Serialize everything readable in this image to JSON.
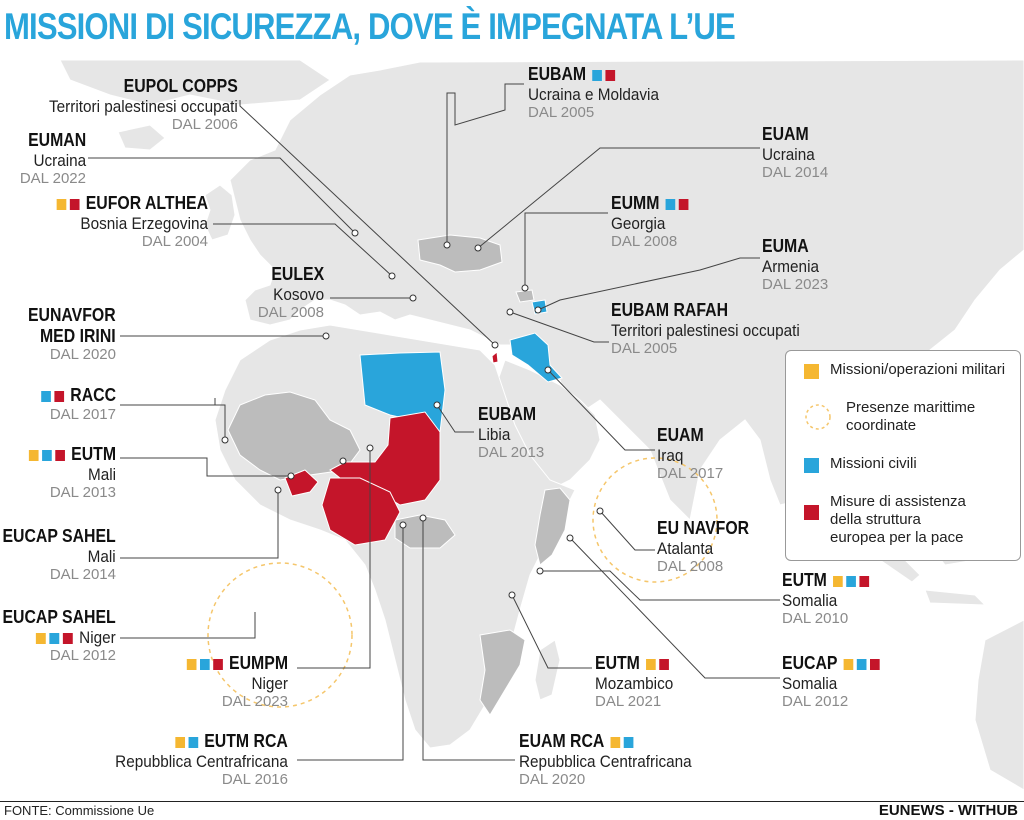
{
  "title": "MISSIONI DI SICUREZZA, DOVE È IMPEGNATA L’UE",
  "source": "FONTE: Commissione Ue",
  "brand": "EUNEWS - WITHUB",
  "colors": {
    "military": "#f5b731",
    "civil": "#29a5db",
    "peace": "#c4152a",
    "land": "#e6e6e6",
    "involved": "#bcbcbc",
    "sea": "#ffffff"
  },
  "legend": {
    "military": "Missioni/operazioni militari",
    "maritime_1": "Presenze marittime",
    "maritime_2": "coordinate",
    "civil": "Missioni civili",
    "peace_1": "Misure di assistenza",
    "peace_2": "della struttura",
    "peace_3": "europea per la pace"
  },
  "missions": {
    "eupol_copps": {
      "name": "EUPOL COPPS",
      "area": "Territori palestinesi occupati",
      "date": "DAL 2006"
    },
    "euman": {
      "name": "EUMAN",
      "area": "Ucraina",
      "date": "DAL 2022"
    },
    "eufor_althea": {
      "name": "EUFOR ALTHEA",
      "area": "Bosnia Erzegovina",
      "date": "DAL 2004"
    },
    "eulex": {
      "name": "EULEX",
      "area": "Kosovo",
      "date": "DAL 2008"
    },
    "eunavfor_irini": {
      "name_1": "EUNAVFOR",
      "name_2": "MED IRINI",
      "date": "DAL 2020"
    },
    "racc": {
      "name": "RACC",
      "date": "DAL 2017"
    },
    "eutm_mali": {
      "name": "EUTM",
      "area": "Mali",
      "date": "DAL 2013"
    },
    "eucap_sahel_mali": {
      "name": "EUCAP SAHEL",
      "area": "Mali",
      "date": "DAL 2014"
    },
    "eucap_sahel_niger": {
      "name": "EUCAP SAHEL",
      "area": "Niger",
      "date": "DAL 2012"
    },
    "eumpm": {
      "name": "EUMPM",
      "area": "Niger",
      "date": "DAL 2023"
    },
    "eutm_rca": {
      "name": "EUTM RCA",
      "area": "Repubblica Centrafricana",
      "date": "DAL 2016"
    },
    "euam_rca": {
      "name": "EUAM RCA",
      "area": "Repubblica Centrafricana",
      "date": "DAL 2020"
    },
    "eutm_moz": {
      "name": "EUTM",
      "area": "Mozambico",
      "date": "DAL 2021"
    },
    "eucap_som": {
      "name": "EUCAP",
      "area": "Somalia",
      "date": "DAL 2012"
    },
    "eutm_som": {
      "name": "EUTM",
      "area": "Somalia",
      "date": "DAL 2010"
    },
    "eunavfor_atalanta": {
      "name": "EU NAVFOR",
      "area": "Atalanta",
      "date": "DAL 2008"
    },
    "euam_iraq": {
      "name": "EUAM",
      "area": "Iraq",
      "date": "DAL 2017"
    },
    "eubam_libia": {
      "name": "EUBAM",
      "area": "Libia",
      "date": "DAL 2013"
    },
    "eubam_rafah": {
      "name": "EUBAM RAFAH",
      "area": "Territori palestinesi occupati",
      "date": "DAL 2005"
    },
    "euma": {
      "name": "EUMA",
      "area": "Armenia",
      "date": "DAL 2023"
    },
    "eumm": {
      "name": "EUMM",
      "area": "Georgia",
      "date": "DAL 2008"
    },
    "euam_ua": {
      "name": "EUAM",
      "area": "Ucraina",
      "date": "DAL 2014"
    },
    "eubam_ua": {
      "name": "EUBAM",
      "area": "Ucraina e Moldavia",
      "date": "DAL 2005"
    }
  }
}
